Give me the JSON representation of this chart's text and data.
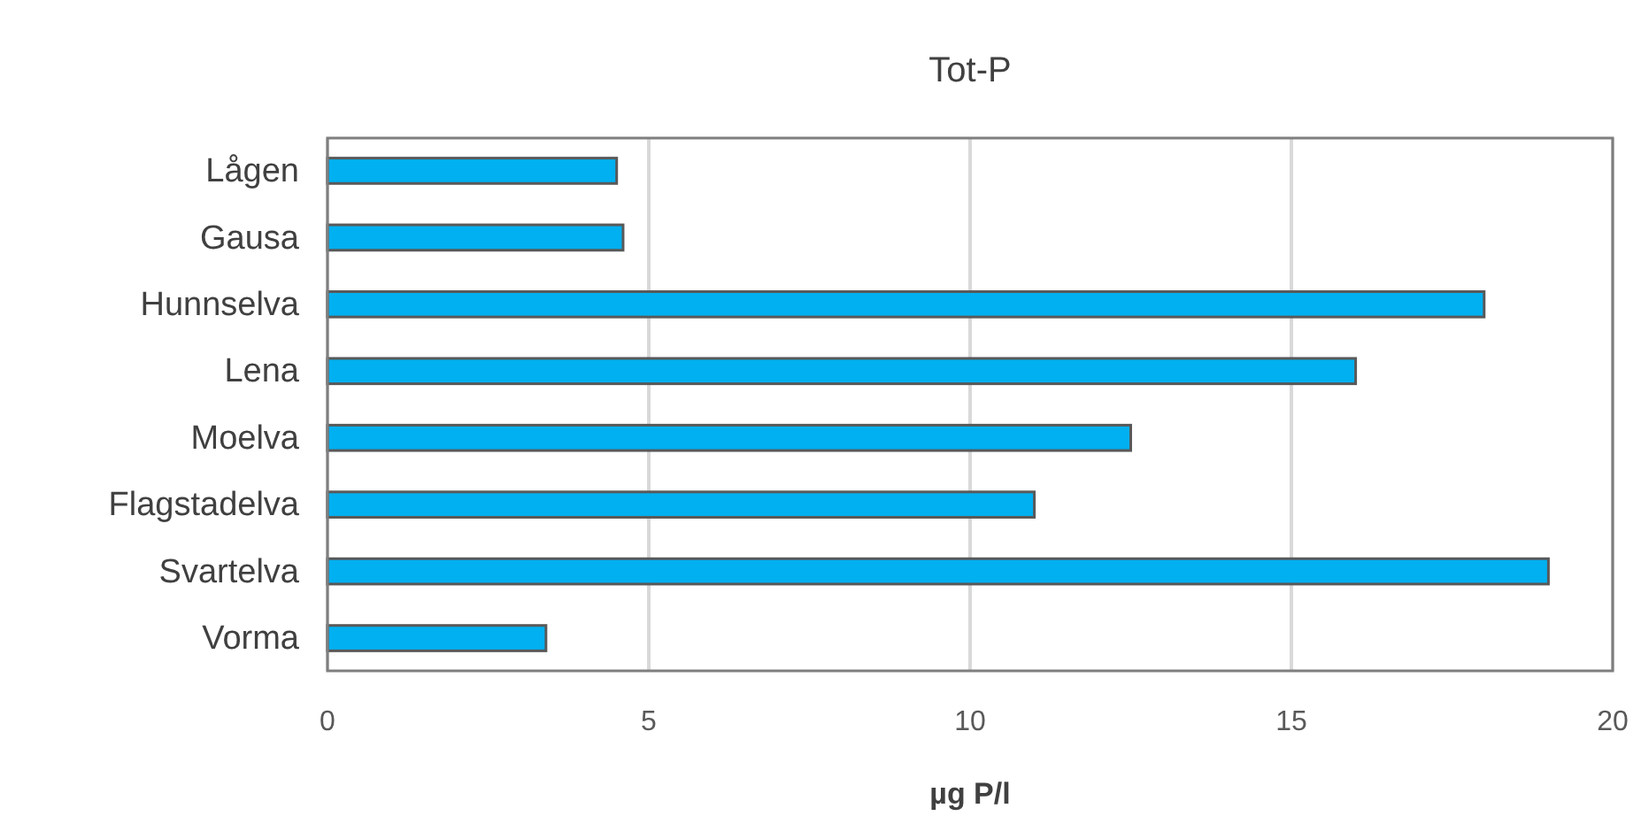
{
  "chart_data": {
    "type": "bar",
    "orientation": "horizontal",
    "title": "Tot-P",
    "xlabel": "µg P/l",
    "categories": [
      "Lågen",
      "Gausa",
      "Hunnselva",
      "Lena",
      "Moelva",
      "Flagstadelva",
      "Svartelva",
      "Vorma"
    ],
    "values": [
      4.5,
      4.6,
      18,
      16,
      12.5,
      11,
      19,
      3.4
    ],
    "color": "#00b0f0",
    "xlim": [
      0,
      20
    ],
    "xticks": [
      0,
      5,
      10,
      15,
      20
    ],
    "grid": "x"
  }
}
